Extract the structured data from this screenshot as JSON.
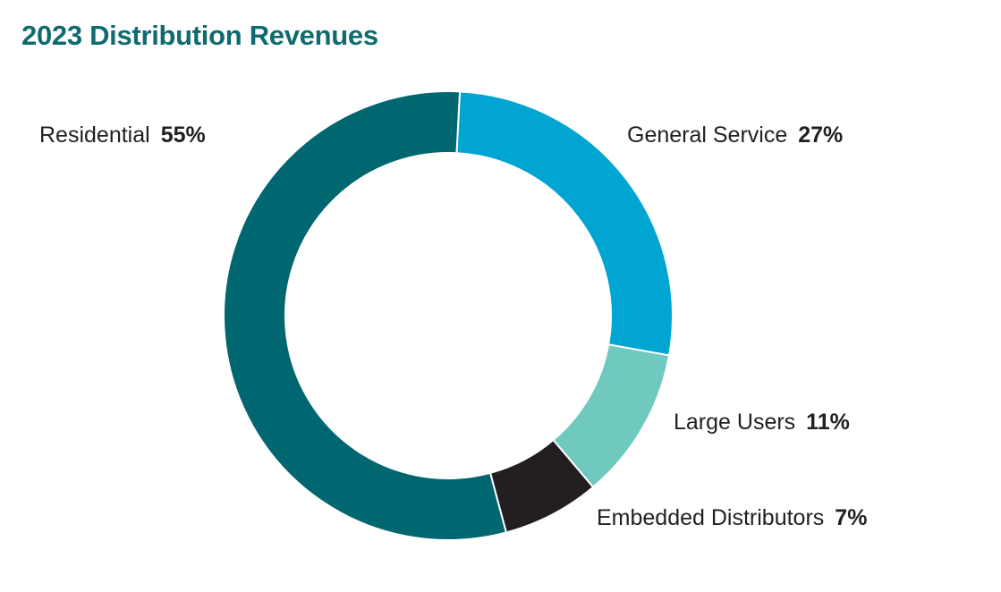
{
  "chart_data": {
    "type": "pie",
    "title": "2023 Distribution Revenues",
    "slices": [
      {
        "name": "Residential",
        "value": 55,
        "label": "55%",
        "color": "#006670"
      },
      {
        "name": "General Service",
        "value": 27,
        "label": "27%",
        "color": "#00a6d1"
      },
      {
        "name": "Large Users",
        "value": 11,
        "label": "11%",
        "color": "#6fc9bf"
      },
      {
        "name": "Embedded Distributors",
        "value": 7,
        "label": "7%",
        "color": "#231f20"
      }
    ]
  }
}
